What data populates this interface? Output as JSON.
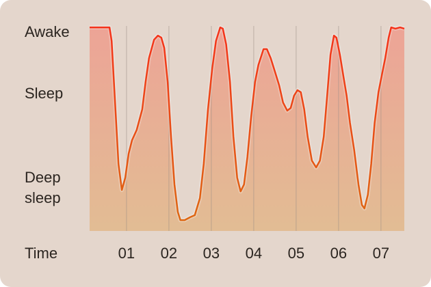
{
  "chart_data": {
    "type": "line",
    "x_label": "Time",
    "xlim": [
      0.13,
      7.55
    ],
    "xticks": [
      {
        "value": 1,
        "label": "01"
      },
      {
        "value": 2,
        "label": "02"
      },
      {
        "value": 3,
        "label": "03"
      },
      {
        "value": 4,
        "label": "04"
      },
      {
        "value": 5,
        "label": "05"
      },
      {
        "value": 6,
        "label": "06"
      },
      {
        "value": 7,
        "label": "07"
      }
    ],
    "ylim": [
      0,
      100
    ],
    "yticks": [
      {
        "value": 97,
        "label": "Awake"
      },
      {
        "value": 67,
        "label": "Sleep"
      },
      {
        "value": 21,
        "label": "Deep sleep"
      }
    ],
    "grid": true,
    "line_gradient": [
      "#f5321a",
      "#dc6a12"
    ],
    "fill_gradient": [
      "#eda193",
      "#e2bb91"
    ],
    "x": [
      0.13,
      0.6,
      0.65,
      0.73,
      0.81,
      0.89,
      0.97,
      1.05,
      1.13,
      1.24,
      1.37,
      1.45,
      1.53,
      1.65,
      1.74,
      1.82,
      1.89,
      1.97,
      2.05,
      2.13,
      2.21,
      2.27,
      2.37,
      2.5,
      2.61,
      2.73,
      2.82,
      2.92,
      3.02,
      3.11,
      3.21,
      3.27,
      3.35,
      3.44,
      3.52,
      3.61,
      3.69,
      3.77,
      3.85,
      3.94,
      4.03,
      4.11,
      4.23,
      4.31,
      4.4,
      4.5,
      4.6,
      4.69,
      4.79,
      4.87,
      4.95,
      5.03,
      5.11,
      5.19,
      5.27,
      5.37,
      5.47,
      5.56,
      5.65,
      5.73,
      5.81,
      5.89,
      5.95,
      6.03,
      6.11,
      6.19,
      6.27,
      6.37,
      6.47,
      6.55,
      6.61,
      6.69,
      6.77,
      6.85,
      6.94,
      7.02,
      7.1,
      7.18,
      7.24,
      7.34,
      7.45,
      7.55
    ],
    "values": [
      99.3,
      99.3,
      92.7,
      62.7,
      32.7,
      20,
      26,
      37.7,
      44.3,
      49.3,
      59.3,
      72.7,
      84.3,
      93.3,
      95.3,
      94.3,
      89.3,
      72.7,
      46,
      22.7,
      9.3,
      5.3,
      5.3,
      6.7,
      7.7,
      16,
      32.7,
      59.3,
      79.3,
      92.7,
      99.3,
      98.7,
      91,
      72.7,
      46,
      26,
      19.3,
      22.7,
      36,
      56,
      72.7,
      81,
      88.7,
      88.7,
      84.3,
      77.7,
      71,
      62.7,
      58.7,
      60,
      66,
      68.7,
      67.7,
      59.3,
      46,
      34.3,
      31,
      34.3,
      46,
      66,
      86,
      95.3,
      94.3,
      86,
      76,
      66,
      52.7,
      39.3,
      22.7,
      12.7,
      11,
      17.7,
      32.7,
      52.7,
      67.7,
      76,
      84.3,
      94.3,
      99.3,
      98.7,
      99.3,
      98.7
    ]
  }
}
